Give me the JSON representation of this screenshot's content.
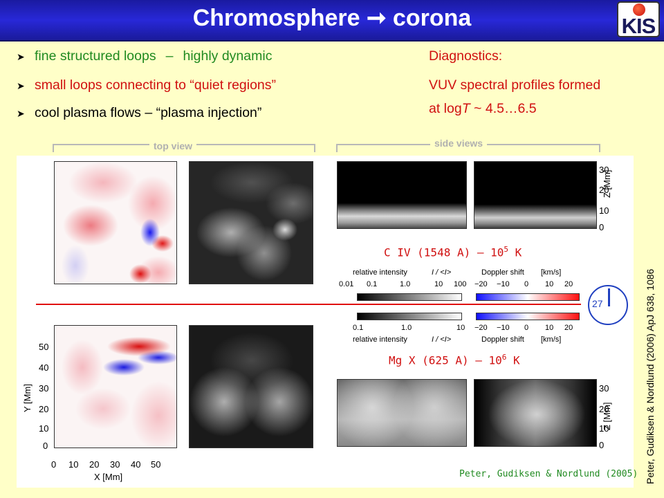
{
  "title": "Chromosphere ➞ corona",
  "logo": "KIS",
  "bullets": [
    {
      "text_a": "fine structured loops",
      "sep": "–",
      "text_b": "highly dynamic"
    },
    {
      "text": "small loops connecting to “quiet regions”"
    },
    {
      "text": "cool plasma flows  –  “plasma injection”"
    }
  ],
  "diagnostics": {
    "heading": "Diagnostics:",
    "line1": "VUV spectral profiles formed",
    "line2_prefix": "at log",
    "line2_var": "T",
    "line2_suffix": " ~ 4.5…6.5"
  },
  "figure": {
    "top_view_label": "top view",
    "side_views_label": "side views",
    "civ_label": "C IV  (1548 A)  –  10",
    "civ_exp": "5",
    "civ_unit": " K",
    "mgx_label": "Mg X (625 A)  –  10",
    "mgx_exp": "6",
    "mgx_unit": " K",
    "rel_intensity": "relative intensity",
    "ratio": "I / <I>",
    "doppler": "Doppler shift",
    "kms": "[km/s]",
    "civ_intensity_ticks": [
      "0.01",
      "0.1",
      "1.0",
      "10",
      "100"
    ],
    "mgx_intensity_ticks": [
      "0.1",
      "1.0",
      "10"
    ],
    "doppler_ticks": [
      "−20",
      "−10",
      "0",
      "10",
      "20"
    ],
    "clock_value": "27",
    "y_axis_label": "Y  [Mm]",
    "x_axis_label": "X  [Mm]",
    "z_axis_label": "Z  [Mm]",
    "y_ticks": [
      "50",
      "40",
      "30",
      "20",
      "10",
      "0"
    ],
    "x_ticks": [
      "0",
      "10",
      "20",
      "30",
      "40",
      "50"
    ],
    "z_ticks": [
      "30",
      "20",
      "10",
      "0"
    ],
    "credit": "Peter, Gudiksen & Nordlund (2005)"
  },
  "side_citation": "Peter, Gudiksen & Nordlund (2006) ApJ 638, 1086",
  "colors": {
    "title_bg": "#2222c8",
    "slide_bg": "#ffffc8",
    "accent_red": "#d01010",
    "accent_green": "#208a20"
  }
}
